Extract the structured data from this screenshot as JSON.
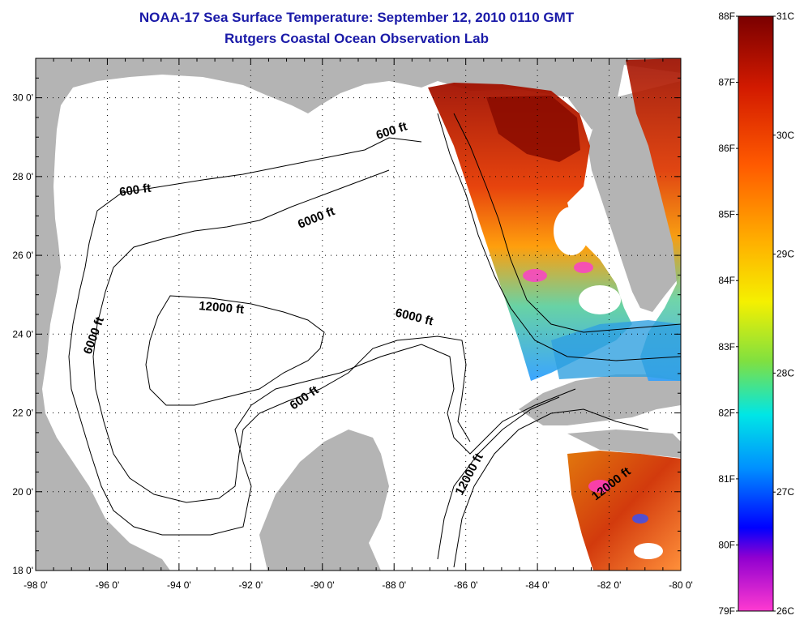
{
  "header": {
    "title": "NOAA-17 Sea Surface Temperature:  September 12, 2010 0110 GMT",
    "subtitle": "Rutgers Coastal Ocean Observation Lab"
  },
  "axes": {
    "lon_ticks": [
      "-98 0'",
      "-96 0'",
      "-94 0'",
      "-92 0'",
      "-90 0'",
      "-88 0'",
      "-86 0'",
      "-84 0'",
      "-82 0'",
      "-80 0'"
    ],
    "lat_ticks": [
      "30 0'",
      "28 0'",
      "26 0'",
      "24 0'",
      "22 0'",
      "20 0'",
      "18 0'"
    ],
    "lon_range": [
      -98,
      -80
    ],
    "lat_range": [
      18,
      31
    ]
  },
  "contours": {
    "labels": [
      "600 ft",
      "600 ft",
      "6000 ft",
      "6000 ft",
      "12000 ft",
      "6000 ft",
      "600 ft",
      "12000 ft",
      "12000 ft"
    ]
  },
  "colorbar": {
    "fahrenheit": [
      "88F",
      "87F",
      "86F",
      "85F",
      "84F",
      "83F",
      "82F",
      "81F",
      "80F",
      "79F"
    ],
    "celsius": [
      "31C",
      "30C",
      "29C",
      "28C",
      "27C",
      "26C"
    ],
    "range_f": [
      79,
      88
    ],
    "range_c": [
      26,
      31
    ]
  },
  "colors": {
    "land": "#b4b4b4",
    "water": "#ffffff",
    "title": "#1a1aa8"
  }
}
